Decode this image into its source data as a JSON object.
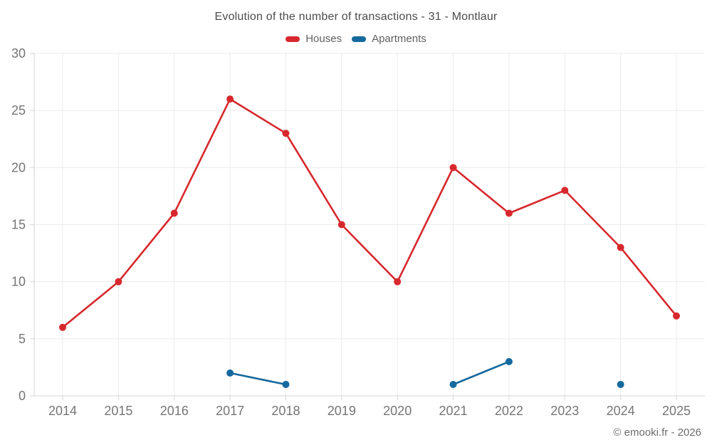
{
  "header": {
    "title": "Evolution of the number of transactions - 31 - Montlaur"
  },
  "footer": {
    "copyright": "© emooki.fr - 2026"
  },
  "colors": {
    "houses": "#d7282d",
    "apartments": "#15699e",
    "grid": "#ececec",
    "axis": "#d6d6d6",
    "tick_text": "#757575",
    "title_text": "#4c4c4c",
    "background": "#ffffff"
  },
  "chart_data": {
    "type": "line",
    "title": "Evolution of the number of transactions - 31 - Montlaur",
    "x": [
      2014,
      2015,
      2016,
      2017,
      2018,
      2019,
      2020,
      2021,
      2022,
      2023,
      2024,
      2025
    ],
    "series": [
      {
        "name": "Houses",
        "color": "#d7282d",
        "values": [
          6,
          10,
          16,
          26,
          23,
          15,
          10,
          20,
          16,
          18,
          13,
          7
        ]
      },
      {
        "name": "Apartments",
        "color": "#15699e",
        "values": [
          null,
          null,
          null,
          2,
          1,
          null,
          null,
          1,
          3,
          null,
          1,
          null
        ]
      }
    ],
    "xlabel": "",
    "ylabel": "",
    "ylim": [
      0,
      30
    ],
    "yticks": [
      0,
      5,
      10,
      15,
      20,
      25,
      30
    ],
    "grid": true,
    "legend_position": "top"
  }
}
